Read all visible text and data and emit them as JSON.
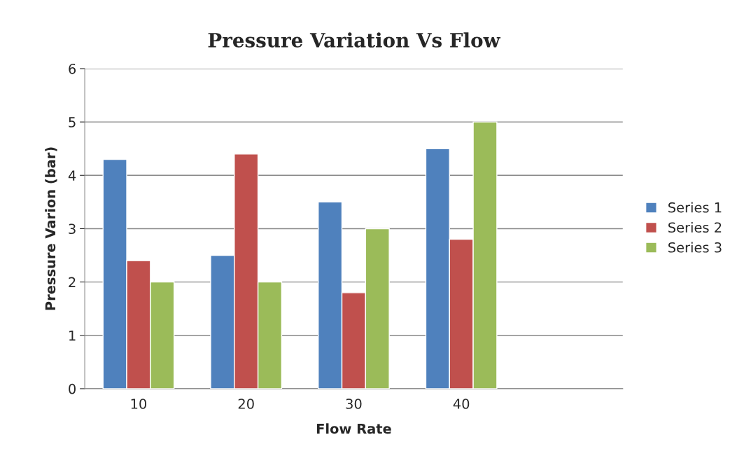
{
  "chart_data": {
    "type": "bar",
    "title": "Pressure Variation Vs Flow",
    "xlabel": "Flow Rate",
    "ylabel": "Pressure Varion (bar)",
    "categories": [
      "10",
      "20",
      "30",
      "40",
      null
    ],
    "series": [
      {
        "name": "Series 1",
        "color": "#4f81bd",
        "values": [
          4.3,
          2.5,
          3.5,
          4.5,
          null
        ]
      },
      {
        "name": "Series 2",
        "color": "#c0504d",
        "values": [
          2.4,
          4.4,
          1.8,
          2.8,
          null
        ]
      },
      {
        "name": "Series 3",
        "color": "#9bbb59",
        "values": [
          2,
          2,
          3,
          5,
          null
        ]
      }
    ],
    "ylim": [
      0,
      6
    ],
    "yticks": [
      0,
      1,
      2,
      3,
      4,
      5,
      6
    ],
    "grid": "y",
    "legend": "right"
  }
}
